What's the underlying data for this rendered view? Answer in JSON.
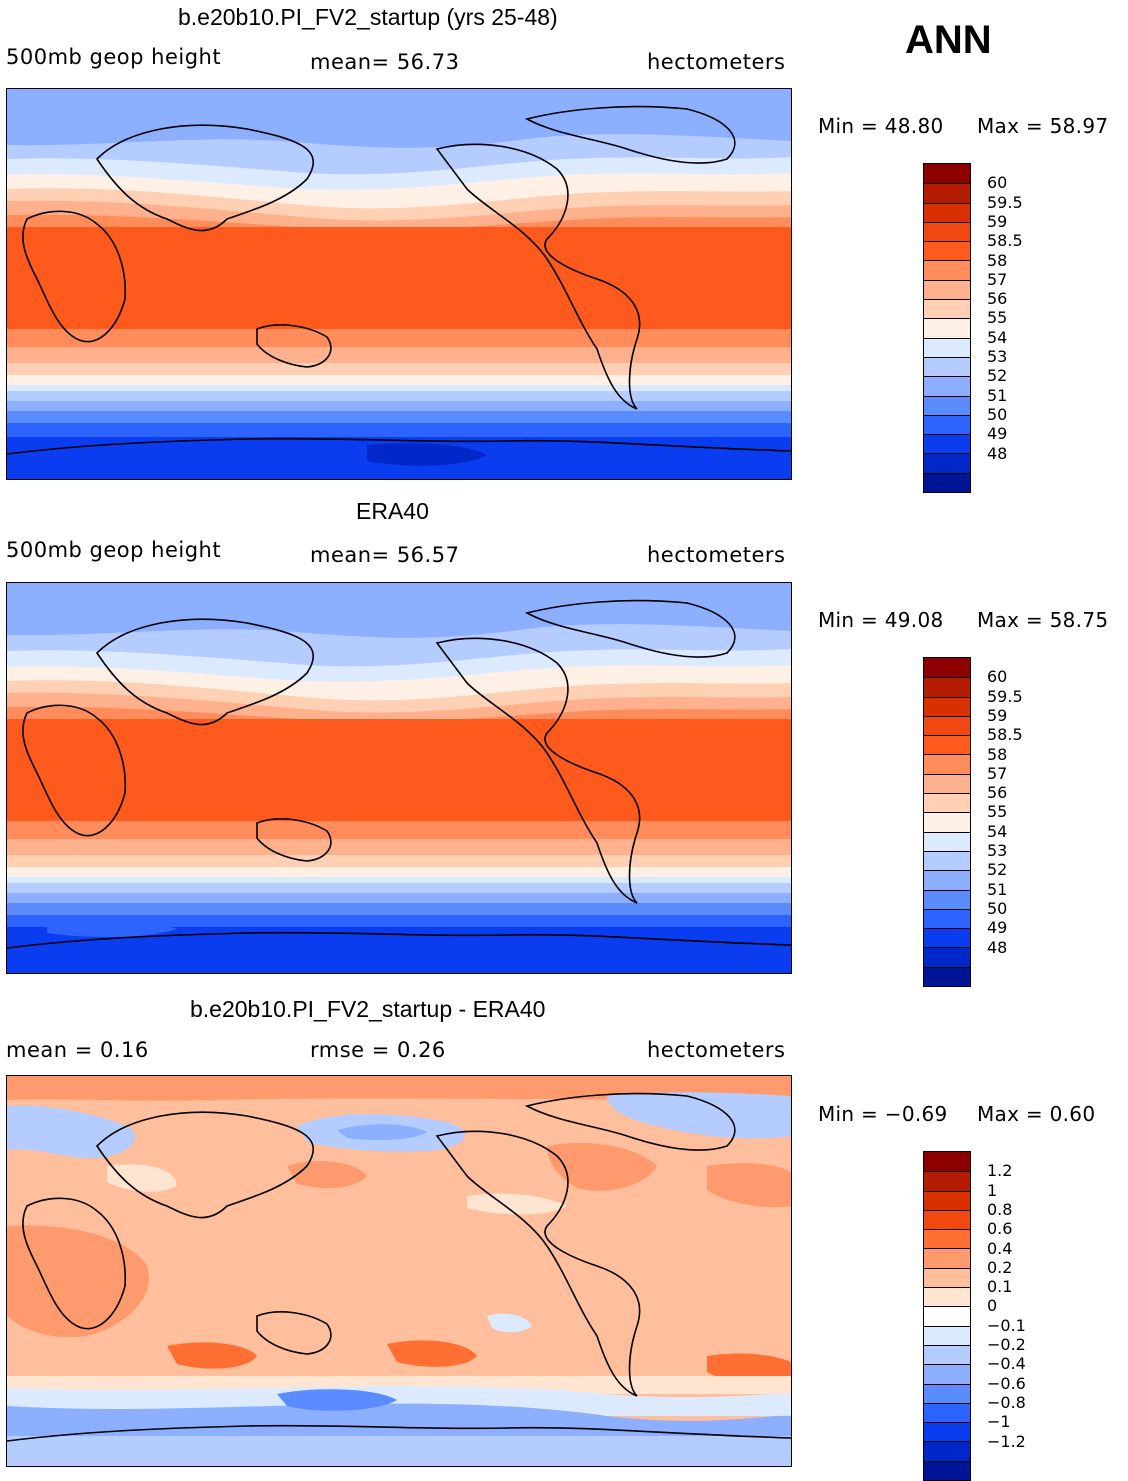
{
  "season": "ANN",
  "panels": [
    {
      "title": "b.e20b10.PI_FV2_startup (yrs 25-48)",
      "left": "500mb geop height",
      "center": "mean=   56.73",
      "right": "hectometers",
      "min_text": "Min =   48.80",
      "max_text": "Max =   58.97",
      "colorbar": {
        "labels": [
          "60",
          "59.5",
          "59",
          "58.5",
          "58",
          "57",
          "56",
          "55",
          "54",
          "53",
          "52",
          "51",
          "50",
          "49",
          "48"
        ],
        "colors": [
          "#8c0000",
          "#b31c00",
          "#d93000",
          "#f04810",
          "#ff5a1e",
          "#ff8c5a",
          "#ffb08c",
          "#ffd0b4",
          "#fff0e6",
          "#dceaff",
          "#b4ccff",
          "#8cb0ff",
          "#5a8cff",
          "#2d64ff",
          "#0a3cf0",
          "#0028c8",
          "#001496"
        ]
      }
    },
    {
      "title": "ERA40",
      "left": "500mb geop height",
      "center": "mean=   56.57",
      "right": "hectometers",
      "min_text": "Min =   49.08",
      "max_text": "Max =   58.75",
      "colorbar": {
        "labels": [
          "60",
          "59.5",
          "59",
          "58.5",
          "58",
          "57",
          "56",
          "55",
          "54",
          "53",
          "52",
          "51",
          "50",
          "49",
          "48"
        ],
        "colors": [
          "#8c0000",
          "#b31c00",
          "#d93000",
          "#f04810",
          "#ff5a1e",
          "#ff8c5a",
          "#ffb08c",
          "#ffd0b4",
          "#fff0e6",
          "#dceaff",
          "#b4ccff",
          "#8cb0ff",
          "#5a8cff",
          "#2d64ff",
          "#0a3cf0",
          "#0028c8",
          "#001496"
        ]
      }
    },
    {
      "title": "b.e20b10.PI_FV2_startup - ERA40",
      "left": "mean =     0.16",
      "center": "rmse =     0.26",
      "right": "hectometers",
      "min_text": "Min =   −0.69",
      "max_text": "Max =     0.60",
      "colorbar": {
        "labels": [
          "1.2",
          "1",
          "0.8",
          "0.6",
          "0.4",
          "0.2",
          "0.1",
          "0",
          "−0.1",
          "−0.2",
          "−0.4",
          "−0.6",
          "−0.8",
          "−1",
          "−1.2"
        ],
        "colors": [
          "#8c0000",
          "#b31c00",
          "#d93000",
          "#f04810",
          "#ff6e32",
          "#ff9a6e",
          "#ffbe9c",
          "#ffe4d2",
          "#ffffff",
          "#dceaff",
          "#b4ccff",
          "#8cb0ff",
          "#5a8cff",
          "#2d64ff",
          "#0a3cf0",
          "#0028c8",
          "#001496"
        ]
      }
    }
  ]
}
